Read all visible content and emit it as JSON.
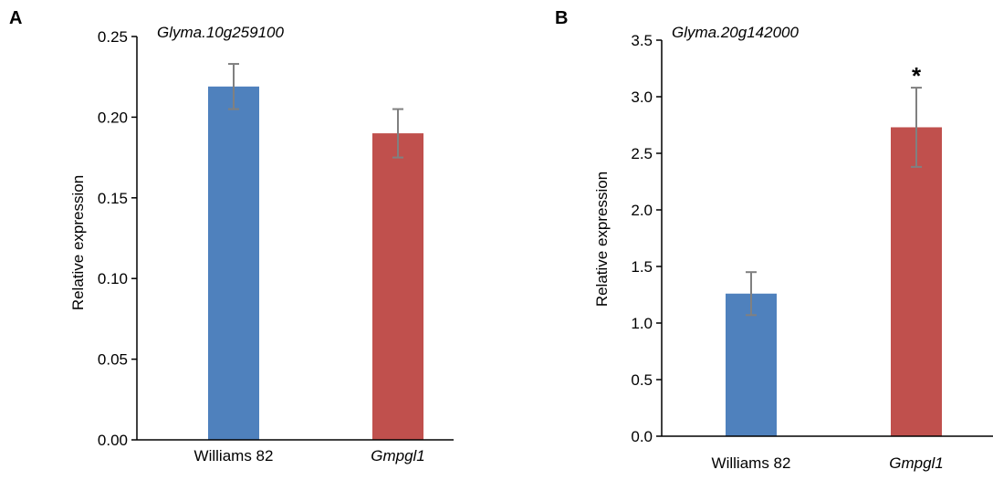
{
  "chart_data": [
    {
      "panel_label": "A",
      "type": "bar",
      "title": "Glyma.10g259100",
      "xlabel": "",
      "ylabel": "Relative expression",
      "categories": [
        "Williams 82",
        "Gmpgl1"
      ],
      "category_italic": [
        false,
        true
      ],
      "values": [
        0.219,
        0.19
      ],
      "errors": [
        0.014,
        0.015
      ],
      "bar_colors": [
        "#4f81bd",
        "#c0504d"
      ],
      "significance": [
        "",
        ""
      ],
      "ylim": [
        0,
        0.25
      ],
      "yticks": [
        0.0,
        0.05,
        0.1,
        0.15,
        0.2,
        0.25
      ],
      "ytick_labels": [
        "0.00",
        "0.05",
        "0.10",
        "0.15",
        "0.20",
        "0.25"
      ],
      "grid": false,
      "legend": "none"
    },
    {
      "panel_label": "B",
      "type": "bar",
      "title": "Glyma.20g142000",
      "xlabel": "",
      "ylabel": "Relative expression",
      "categories": [
        "Williams 82",
        "Gmpgl1"
      ],
      "category_italic": [
        false,
        true
      ],
      "values": [
        1.26,
        2.73
      ],
      "errors": [
        0.19,
        0.35
      ],
      "bar_colors": [
        "#4f81bd",
        "#c0504d"
      ],
      "significance": [
        "",
        "*"
      ],
      "ylim": [
        0,
        3.5
      ],
      "yticks": [
        0.0,
        0.5,
        1.0,
        1.5,
        2.0,
        2.5,
        3.0,
        3.5
      ],
      "ytick_labels": [
        "0.0",
        "0.5",
        "1.0",
        "1.5",
        "2.0",
        "2.5",
        "3.0",
        "3.5"
      ],
      "grid": false,
      "legend": "none"
    }
  ],
  "style": {
    "axis_color": "#000000",
    "errorbar_color": "#808080"
  }
}
